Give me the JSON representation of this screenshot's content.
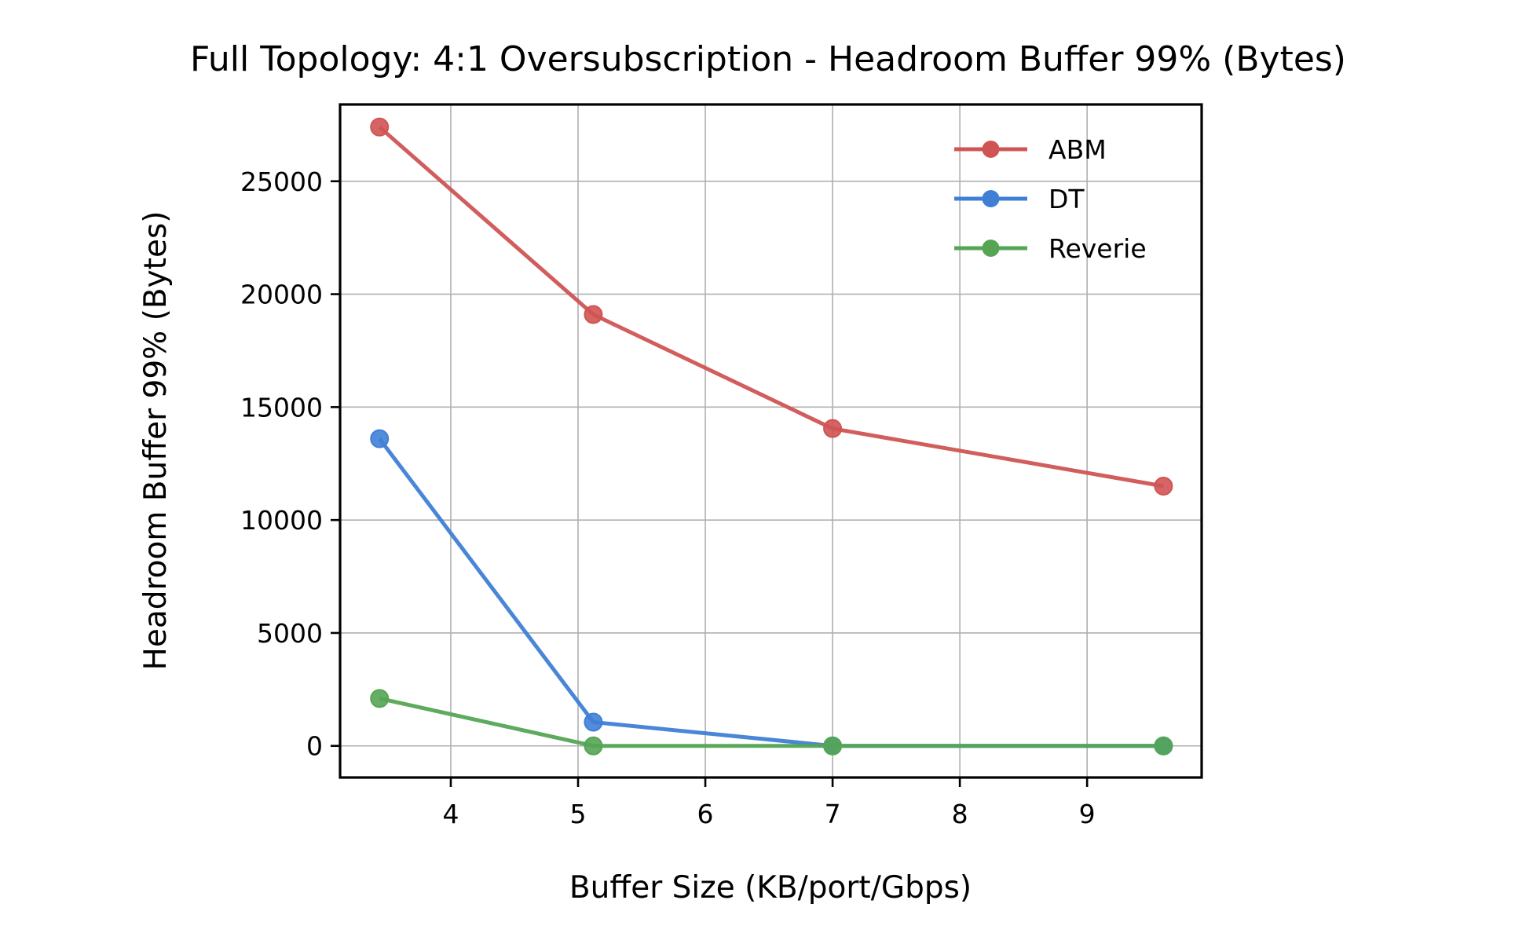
{
  "chart_data": {
    "type": "line",
    "title": "Full Topology: 4:1 Oversubscription - Headroom Buffer 99% (Bytes)",
    "xlabel": "Buffer Size (KB/port/Gbps)",
    "ylabel": "Headroom Buffer 99% (Bytes)",
    "xlim": [
      3.13,
      9.9
    ],
    "ylim": [
      -1400,
      28400
    ],
    "xticks": [
      4,
      5,
      6,
      7,
      8,
      9
    ],
    "yticks": [
      0,
      5000,
      10000,
      15000,
      20000,
      25000
    ],
    "grid": true,
    "legend_position": "top-right",
    "series": [
      {
        "name": "ABM",
        "color": "#d05454",
        "x": [
          3.44,
          5.12,
          7.0,
          9.6
        ],
        "y": [
          27400,
          19100,
          14050,
          11500
        ]
      },
      {
        "name": "DT",
        "color": "#3f7fd6",
        "x": [
          3.44,
          5.12,
          7.0,
          9.6
        ],
        "y": [
          13600,
          1050,
          0,
          0
        ]
      },
      {
        "name": "Reverie",
        "color": "#55a555",
        "x": [
          3.44,
          5.12,
          7.0,
          9.6
        ],
        "y": [
          2100,
          0,
          0,
          0
        ]
      }
    ]
  }
}
